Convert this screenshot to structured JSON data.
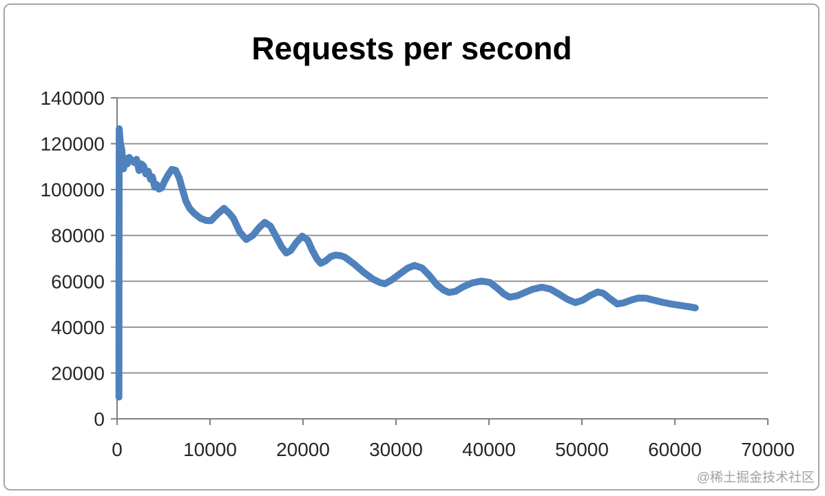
{
  "watermark": "@稀土掘金技术社区",
  "colors": {
    "line": "#4F81BD",
    "gridline": "#959595",
    "axis": "#808080",
    "tick_label": "#262626",
    "title": "#000000",
    "watermark": "#A3A3A3",
    "border": "#A6A6A6",
    "background": "#FFFFFF"
  },
  "chart_data": {
    "type": "line",
    "title": "Requests per second",
    "xlabel": "",
    "ylabel": "",
    "xlim": [
      0,
      70000
    ],
    "ylim": [
      0,
      140000
    ],
    "x_ticks": [
      0,
      10000,
      20000,
      30000,
      40000,
      50000,
      60000,
      70000
    ],
    "y_ticks": [
      0,
      20000,
      40000,
      60000,
      80000,
      100000,
      120000,
      140000
    ],
    "grid": true,
    "legend": false,
    "series": [
      {
        "name": "Requests per second",
        "points": [
          [
            200,
            9500
          ],
          [
            210,
            60000
          ],
          [
            220,
            100000
          ],
          [
            230,
            126500
          ],
          [
            350,
            120500
          ],
          [
            500,
            117500
          ],
          [
            700,
            109000
          ],
          [
            900,
            113500
          ],
          [
            1100,
            111200
          ],
          [
            1300,
            114000
          ],
          [
            1600,
            112500
          ],
          [
            1850,
            111800
          ],
          [
            2100,
            113200
          ],
          [
            2360,
            108300
          ],
          [
            2600,
            111200
          ],
          [
            2850,
            110300
          ],
          [
            3100,
            106800
          ],
          [
            3350,
            108000
          ],
          [
            3600,
            104500
          ],
          [
            3800,
            105500
          ],
          [
            4050,
            101000
          ],
          [
            4250,
            102200
          ],
          [
            4500,
            100200
          ],
          [
            4800,
            100800
          ],
          [
            5100,
            103500
          ],
          [
            5500,
            106500
          ],
          [
            5900,
            108800
          ],
          [
            6300,
            108400
          ],
          [
            6700,
            105000
          ],
          [
            7000,
            100500
          ],
          [
            7400,
            95000
          ],
          [
            7800,
            91800
          ],
          [
            8300,
            89600
          ],
          [
            9000,
            87400
          ],
          [
            9600,
            86500
          ],
          [
            10100,
            86400
          ],
          [
            10800,
            89300
          ],
          [
            11500,
            91800
          ],
          [
            12100,
            89500
          ],
          [
            12500,
            87500
          ],
          [
            13200,
            81500
          ],
          [
            13900,
            78200
          ],
          [
            14600,
            80000
          ],
          [
            15300,
            83500
          ],
          [
            15900,
            85700
          ],
          [
            16500,
            84000
          ],
          [
            17100,
            79500
          ],
          [
            17700,
            75000
          ],
          [
            18200,
            72300
          ],
          [
            18700,
            73500
          ],
          [
            19300,
            77000
          ],
          [
            19900,
            79700
          ],
          [
            20500,
            78000
          ],
          [
            21000,
            73500
          ],
          [
            21500,
            69800
          ],
          [
            21900,
            67800
          ],
          [
            22400,
            68800
          ],
          [
            23000,
            70800
          ],
          [
            23500,
            71400
          ],
          [
            24000,
            71200
          ],
          [
            24500,
            70500
          ],
          [
            25500,
            67500
          ],
          [
            26500,
            64000
          ],
          [
            27500,
            61000
          ],
          [
            28300,
            59400
          ],
          [
            28800,
            58900
          ],
          [
            29500,
            60500
          ],
          [
            30500,
            63500
          ],
          [
            31300,
            65800
          ],
          [
            32000,
            66900
          ],
          [
            32800,
            65800
          ],
          [
            33600,
            62500
          ],
          [
            34400,
            58500
          ],
          [
            35100,
            56200
          ],
          [
            35700,
            55100
          ],
          [
            36400,
            55600
          ],
          [
            37200,
            57500
          ],
          [
            38200,
            59300
          ],
          [
            39200,
            60100
          ],
          [
            40100,
            59500
          ],
          [
            40900,
            57000
          ],
          [
            41600,
            54500
          ],
          [
            42200,
            53100
          ],
          [
            43000,
            53600
          ],
          [
            43800,
            55000
          ],
          [
            44700,
            56500
          ],
          [
            45700,
            57400
          ],
          [
            46600,
            56600
          ],
          [
            47500,
            54500
          ],
          [
            48400,
            52200
          ],
          [
            49300,
            50700
          ],
          [
            50100,
            51800
          ],
          [
            50900,
            53800
          ],
          [
            51700,
            55300
          ],
          [
            52300,
            54800
          ],
          [
            53000,
            52500
          ],
          [
            53800,
            50100
          ],
          [
            54500,
            50600
          ],
          [
            55300,
            51800
          ],
          [
            56100,
            52700
          ],
          [
            56900,
            52600
          ],
          [
            57700,
            51800
          ],
          [
            58700,
            50800
          ],
          [
            59700,
            50000
          ],
          [
            60700,
            49400
          ],
          [
            61500,
            48900
          ],
          [
            62200,
            48400
          ]
        ]
      }
    ]
  }
}
